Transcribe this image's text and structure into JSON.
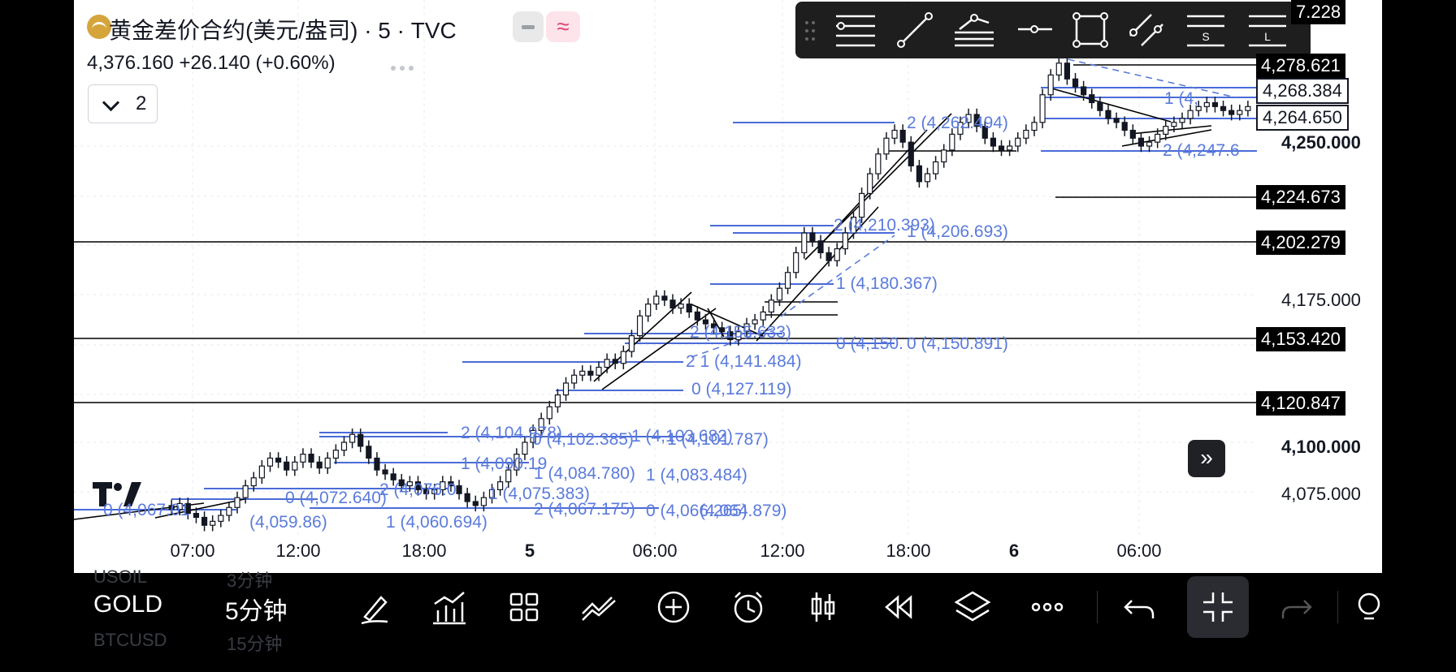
{
  "header": {
    "symbol_title": "黄金差价合约(美元/盎司) · 5 · TVC",
    "price_line": "4,376.160  +26.140 (+0.60%)",
    "indicators_count": "2"
  },
  "price_axis": {
    "labels": [
      {
        "text": "7.228",
        "style": "boxed"
      },
      {
        "text": "4,278.621",
        "style": "boxed"
      },
      {
        "text": "4,268.384",
        "style": "outlined"
      },
      {
        "text": "4,264.650",
        "style": "outlined"
      },
      {
        "text": "4,250.000",
        "style": "bold"
      },
      {
        "text": "4,224.673",
        "style": "boxed"
      },
      {
        "text": "4,202.279",
        "style": "boxed"
      },
      {
        "text": "4,175.000",
        "style": "plain"
      },
      {
        "text": "4,153.420",
        "style": "boxed"
      },
      {
        "text": "4,120.847",
        "style": "boxed"
      },
      {
        "text": "4,100.000",
        "style": "bold"
      },
      {
        "text": "4,075.000",
        "style": "plain"
      }
    ]
  },
  "time_axis": {
    "labels": [
      "07:00",
      "12:00",
      "18:00",
      "5",
      "06:00",
      "12:00",
      "18:00",
      "6",
      "06:00"
    ]
  },
  "fib_labels": [
    "2 (4,262.494)",
    "1 (4,",
    "2 (4,247.6",
    "2 (4,210.393)",
    "1 (4,206.693)",
    "1 (4,180.367)",
    "2 (4,155.633)",
    "0 (4,150.",
    "0 (4,150.891)",
    "2 1 (4,141.484)",
    "0 (4,127.119)",
    "2 (4,104.978)",
    "0 (4,102.385)",
    "1 (4,103.682)",
    "1 (4,101.787)",
    "1 (4,090.19",
    "1 (4,084.780)",
    "1 (4,083.484)",
    "2 (4,076.0",
    "1 (4,075.383)",
    "0 (4,072.640)",
    "2 (4,067.175)",
    "0 (4,066.265)",
    "(4,064.879)",
    "0 (4,067.01",
    "(4,059.86)",
    "1 (4,060.694)"
  ],
  "toolbar": {
    "symbol": "GOLD",
    "interval": "5分钟",
    "ghost_above": [
      "USOIL",
      "3分钟"
    ],
    "ghost_below": [
      "BTCUSD",
      "15分钟"
    ]
  },
  "candles": [
    4068,
    4066,
    4069,
    4064,
    4062,
    4058,
    4060,
    4063,
    4067,
    4072,
    4078,
    4082,
    4088,
    4092,
    4090,
    4086,
    4090,
    4094,
    4090,
    4087,
    4092,
    4096,
    4100,
    4104,
    4098,
    4092,
    4086,
    4084,
    4081,
    4078,
    4080,
    4076,
    4074,
    4076,
    4080,
    4078,
    4074,
    4070,
    4068,
    4072,
    4076,
    4080,
    4086,
    4094,
    4100,
    4106,
    4112,
    4118,
    4124,
    4130,
    4134,
    4136,
    4134,
    4138,
    4142,
    4140,
    4146,
    4154,
    4164,
    4170,
    4174,
    4172,
    4168,
    4170,
    4166,
    4162,
    4160,
    4158,
    4156,
    4152,
    4156,
    4160,
    4162,
    4166,
    4172,
    4178,
    4186,
    4196,
    4206,
    4202,
    4196,
    4192,
    4198,
    4206,
    4214,
    4226,
    4236,
    4246,
    4254,
    4258,
    4252,
    4240,
    4232,
    4236,
    4242,
    4248,
    4256,
    4262,
    4266,
    4260,
    4254,
    4250,
    4248,
    4250,
    4254,
    4258,
    4262,
    4276,
    4286,
    4292,
    4284,
    4280,
    4276,
    4272,
    4268,
    4264,
    4262,
    4258,
    4254,
    4250,
    4252,
    4256,
    4260,
    4262,
    4264,
    4268,
    4270,
    4272,
    4270,
    4268,
    4266,
    4268,
    4270
  ]
}
